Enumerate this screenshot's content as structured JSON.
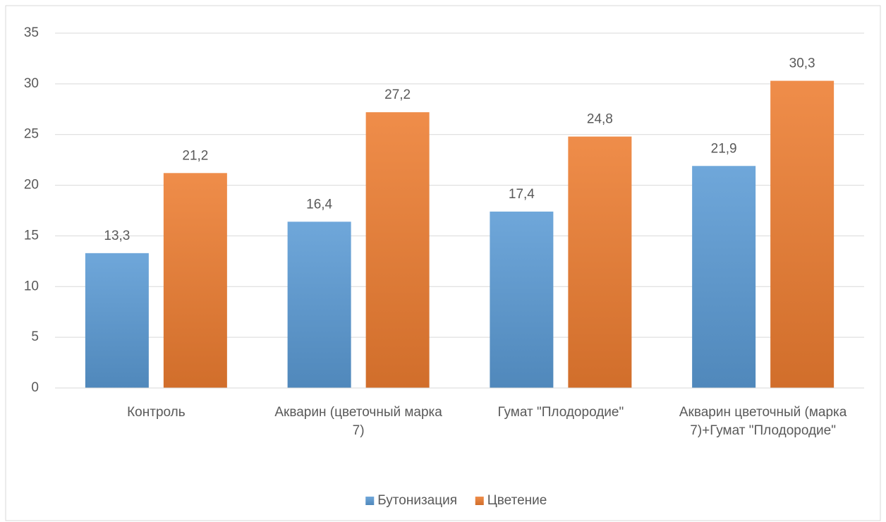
{
  "chart_data": {
    "type": "bar",
    "categories": [
      "Контроль",
      "Акварин (цветочный марка 7)",
      "Гумат \"Плодородие\"",
      "Акварин цветочный (марка 7)+Гумат \"Плодородие\""
    ],
    "series": [
      {
        "name": "Бутонизация",
        "color": "#5b9bd5",
        "values": [
          13.3,
          16.4,
          17.4,
          21.9
        ],
        "value_labels": [
          "13,3",
          "16,4",
          "17,4",
          "21,9"
        ]
      },
      {
        "name": "Цветение",
        "color": "#ed7d31",
        "values": [
          21.2,
          27.2,
          24.8,
          30.3
        ],
        "value_labels": [
          "21,2",
          "27,2",
          "24,8",
          "30,3"
        ]
      }
    ],
    "ylim": [
      0,
      35
    ],
    "yticks": [
      0,
      5,
      10,
      15,
      20,
      25,
      30,
      35
    ],
    "grid": true,
    "legend": "bottom"
  }
}
